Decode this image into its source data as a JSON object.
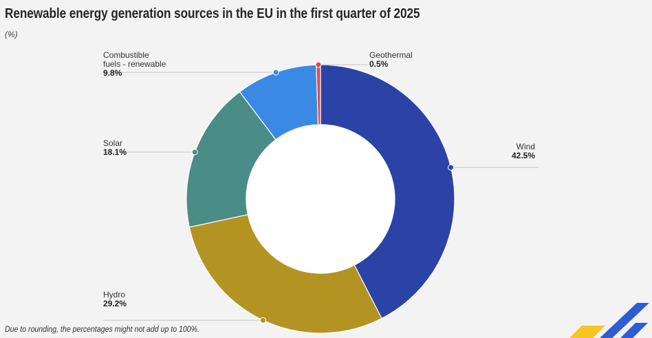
{
  "header": {
    "title": "Renewable energy generation sources in the EU in the first quarter of  2025",
    "subtitle": "(%)"
  },
  "footnote": "Due to rounding, the percentages might not add up to 100%.",
  "chart_data": {
    "type": "pie",
    "subtype": "donut",
    "title": "Renewable energy generation sources in the EU in the first quarter of  2025",
    "unit": "(%)",
    "slices": [
      {
        "name": "Wind",
        "value": 42.5,
        "label": "42.5%",
        "color": "#2b43a6",
        "name_lines": [
          "Wind"
        ]
      },
      {
        "name": "Hydro",
        "value": 29.2,
        "label": "29.2%",
        "color": "#b39422",
        "name_lines": [
          "Hydro"
        ]
      },
      {
        "name": "Solar",
        "value": 18.1,
        "label": "18.1%",
        "color": "#4a8c86",
        "name_lines": [
          "Solar"
        ]
      },
      {
        "name": "Combustible fuels - renewable",
        "value": 9.8,
        "label": "9.8%",
        "color": "#3a8ae5",
        "name_lines": [
          "Combustible",
          "fuels - renewable"
        ]
      },
      {
        "name": "Geothermal",
        "value": 0.5,
        "label": "0.5%",
        "color": "#e0484f",
        "name_lines": [
          "Geothermal"
        ]
      }
    ],
    "start": "top, clockwise"
  },
  "logo": {
    "colors": [
      "#f7c51e",
      "#2e5bd6"
    ]
  }
}
